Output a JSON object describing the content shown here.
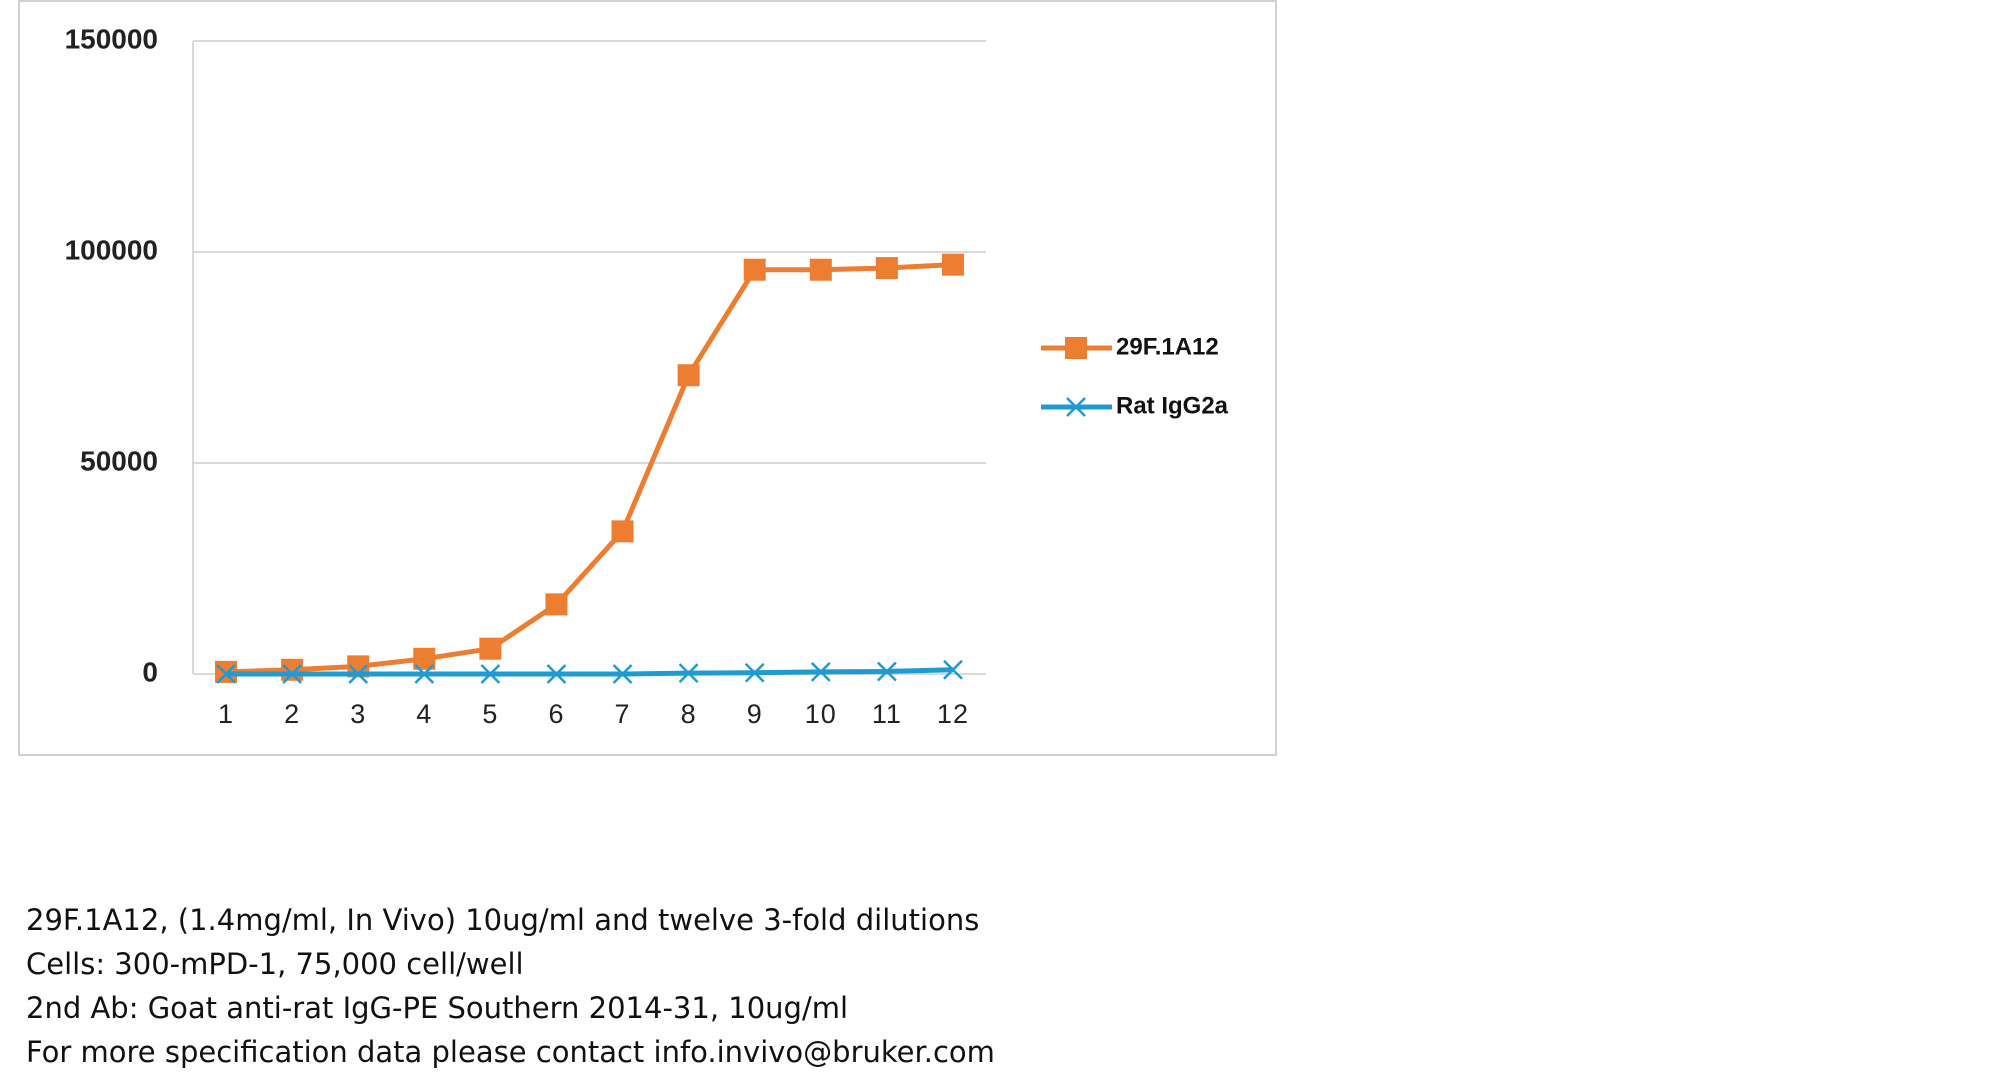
{
  "chart_data": {
    "type": "line",
    "categories": [
      "1",
      "2",
      "3",
      "4",
      "5",
      "6",
      "7",
      "8",
      "9",
      "10",
      "11",
      "12"
    ],
    "series": [
      {
        "name": "29F.1A12",
        "color": "#ed7d31",
        "marker": "square",
        "values": [
          500,
          1000,
          1800,
          3600,
          6000,
          16500,
          33800,
          70800,
          95800,
          95800,
          96200,
          97000
        ]
      },
      {
        "name": "Rat IgG2a",
        "color": "#1f9bd1",
        "marker": "x",
        "values": [
          0,
          0,
          0,
          0,
          0,
          0,
          0,
          200,
          300,
          500,
          600,
          1000
        ]
      }
    ],
    "ylim": [
      0,
      150000
    ],
    "yticks": [
      0,
      50000,
      100000,
      150000
    ],
    "grid": true,
    "legend": "right"
  },
  "caption": [
    "29F.1A12, (1.4mg/ml, In Vivo) 10ug/ml and twelve 3-fold dilutions",
    "Cells: 300-mPD-1, 75,000 cell/well",
    "2nd Ab:  Goat anti-rat IgG-PE  Southern 2014-31, 10ug/ml",
    "For more specification data please contact info.invivo@bruker.com"
  ]
}
